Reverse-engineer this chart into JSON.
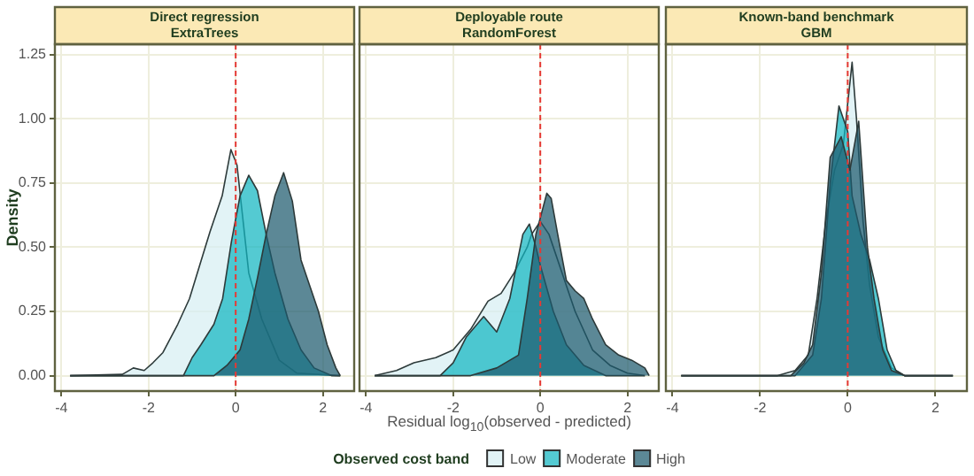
{
  "chart_data": [
    {
      "type": "area",
      "title": "Direct regression",
      "subtitle": "ExtraTrees",
      "ylabel": "Density",
      "xlim": [
        -4.15,
        2.72
      ],
      "ylim": [
        -0.06,
        1.29
      ],
      "xticks": [
        -4,
        -2,
        0,
        2
      ],
      "yticks": [
        {
          "value": 0,
          "label": "0.00"
        },
        {
          "value": 0.25,
          "label": "0.25"
        },
        {
          "value": 0.5,
          "label": "0.50"
        },
        {
          "value": 0.75,
          "label": "0.75"
        },
        {
          "value": 1,
          "label": "1.00"
        },
        {
          "value": 1.25,
          "label": "1.25"
        }
      ],
      "grid": true,
      "legend": false,
      "ref_lines": [
        {
          "axis": "x",
          "value": 0,
          "color": "#e53935",
          "line_style": "dashed"
        }
      ],
      "series": [
        {
          "color": "#d7eef3",
          "x": [
            -3.8,
            -2.6,
            -2.35,
            -2.1,
            -1.9,
            -1.67,
            -1.33,
            -1.06,
            -0.79,
            -0.59,
            -0.31,
            -0.11,
            0.03,
            0.3,
            0.6,
            1.0,
            1.4,
            2.4
          ],
          "values": [
            0,
            0.005,
            0.03,
            0.02,
            0.05,
            0.09,
            0.2,
            0.3,
            0.45,
            0.56,
            0.7,
            0.88,
            0.82,
            0.4,
            0.22,
            0.06,
            0.01,
            0
          ]
        },
        {
          "color": "#12b5c0",
          "x": [
            -3.8,
            -1.2,
            -1.0,
            -0.8,
            -0.5,
            -0.3,
            -0.1,
            0.1,
            0.3,
            0.5,
            0.7,
            0.9,
            1.2,
            1.5,
            1.8,
            2.2,
            2.4
          ],
          "values": [
            0,
            0,
            0.07,
            0.12,
            0.2,
            0.3,
            0.52,
            0.7,
            0.78,
            0.72,
            0.55,
            0.4,
            0.22,
            0.1,
            0.03,
            0,
            0
          ]
        },
        {
          "color": "#1d5a6e",
          "x": [
            -3.8,
            -0.5,
            -0.2,
            0.1,
            0.3,
            0.5,
            0.7,
            0.9,
            1.1,
            1.3,
            1.5,
            1.7,
            1.9,
            2.1,
            2.3,
            2.4
          ],
          "values": [
            0,
            0,
            0.04,
            0.1,
            0.22,
            0.38,
            0.55,
            0.7,
            0.79,
            0.68,
            0.45,
            0.35,
            0.25,
            0.12,
            0.03,
            0
          ]
        }
      ]
    },
    {
      "type": "area",
      "title": "Deployable route",
      "subtitle": "RandomForest",
      "xlabel": "Residual log$_{10}$(observed - predicted)",
      "legend_title": "Observed cost band",
      "legend": "bottom",
      "tick_labels": "x",
      "xlim": [
        -4.15,
        2.72
      ],
      "ylim": [
        -0.06,
        1.29
      ],
      "xticks": [
        -4,
        -2,
        0,
        2
      ],
      "yticks": [
        0,
        0.25,
        0.5,
        0.75,
        1,
        1.25
      ],
      "grid": true,
      "ref_lines": [
        {
          "axis": "x",
          "value": 0,
          "color": "#e53935",
          "line_style": "dashed"
        }
      ],
      "series": [
        {
          "name": "Low",
          "color": "#d7eef3",
          "x": [
            -3.8,
            -3.3,
            -2.9,
            -2.4,
            -2.0,
            -1.6,
            -1.2,
            -0.9,
            -0.6,
            -0.3,
            -0.2,
            0,
            0.2,
            0.5,
            0.8,
            1.2,
            1.6,
            2.0,
            2.4
          ],
          "values": [
            0,
            0.02,
            0.05,
            0.07,
            0.1,
            0.18,
            0.29,
            0.32,
            0.4,
            0.5,
            0.55,
            0.6,
            0.55,
            0.4,
            0.25,
            0.1,
            0.04,
            0.01,
            0
          ]
        },
        {
          "name": "Moderate",
          "color": "#12b5c0",
          "x": [
            -3.8,
            -2.3,
            -2.0,
            -1.7,
            -1.3,
            -1.0,
            -0.7,
            -0.4,
            -0.25,
            -0.1,
            0,
            0.3,
            0.6,
            1.0,
            1.5,
            2.4
          ],
          "values": [
            0,
            0,
            0.05,
            0.15,
            0.23,
            0.17,
            0.3,
            0.55,
            0.59,
            0.5,
            0.43,
            0.25,
            0.12,
            0.04,
            0,
            0
          ]
        },
        {
          "name": "High",
          "color": "#1d5a6e",
          "x": [
            -3.8,
            -1.6,
            -1.0,
            -0.5,
            -0.3,
            -0.1,
            0.15,
            0.25,
            0.4,
            0.6,
            0.8,
            1.0,
            1.2,
            1.5,
            1.8,
            2.1,
            2.4,
            2.5
          ],
          "values": [
            0,
            0,
            0.03,
            0.08,
            0.3,
            0.55,
            0.71,
            0.69,
            0.55,
            0.37,
            0.33,
            0.3,
            0.22,
            0.12,
            0.08,
            0.06,
            0.03,
            0
          ]
        }
      ]
    },
    {
      "type": "area",
      "title": "Known-band benchmark",
      "subtitle": "GBM",
      "tick_labels": "x",
      "legend": false,
      "xlim": [
        -4.15,
        2.72
      ],
      "ylim": [
        -0.06,
        1.29
      ],
      "xticks": [
        -4,
        -2,
        0,
        2
      ],
      "yticks": [
        0,
        0.25,
        0.5,
        0.75,
        1,
        1.25
      ],
      "grid": true,
      "ref_lines": [
        {
          "axis": "x",
          "value": 0,
          "color": "#e53935",
          "line_style": "dashed"
        }
      ],
      "series": [
        {
          "color": "#d7eef3",
          "x": [
            -3.8,
            -1.6,
            -1.2,
            -0.9,
            -0.7,
            -0.5,
            -0.3,
            -0.1,
            0.1,
            0.2,
            0.35,
            0.5,
            0.7,
            1.0,
            1.3,
            2.4
          ],
          "values": [
            0,
            0,
            0.02,
            0.08,
            0.3,
            0.6,
            0.8,
            0.9,
            1.22,
            1.0,
            0.6,
            0.35,
            0.15,
            0.03,
            0,
            0
          ]
        },
        {
          "color": "#12b5c0",
          "x": [
            -3.8,
            -1.2,
            -0.8,
            -0.6,
            -0.4,
            -0.2,
            0,
            0.1,
            0.3,
            0.5,
            0.7,
            0.9,
            1.1,
            1.3,
            2.4
          ],
          "values": [
            0,
            0,
            0.08,
            0.3,
            0.75,
            1.05,
            0.95,
            0.7,
            0.55,
            0.45,
            0.3,
            0.1,
            0.02,
            0,
            0
          ]
        },
        {
          "color": "#1d5a6e",
          "x": [
            -3.8,
            -1.3,
            -1.0,
            -0.8,
            -0.6,
            -0.4,
            -0.15,
            0.05,
            0.25,
            0.45,
            0.6,
            0.8,
            1.0,
            1.3,
            2.4
          ],
          "values": [
            0,
            0,
            0.05,
            0.12,
            0.4,
            0.85,
            0.93,
            0.8,
            0.99,
            0.5,
            0.3,
            0.1,
            0.02,
            0,
            0
          ]
        }
      ]
    }
  ]
}
